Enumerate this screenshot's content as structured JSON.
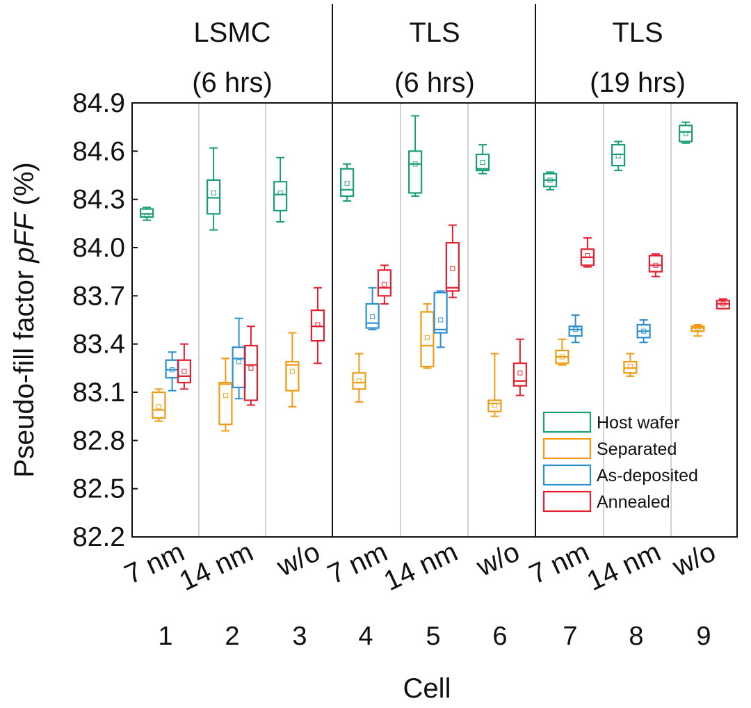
{
  "chart_data": {
    "type": "box",
    "ylabel_prefix": "Pseudo-fill factor ",
    "ylabel_italic": "pFF",
    "ylabel_suffix": " (%)",
    "xlabel": "Cell",
    "ylim": [
      82.2,
      84.9
    ],
    "yticks": [
      "82.2",
      "82.5",
      "82.8",
      "83.1",
      "83.4",
      "83.7",
      "84.0",
      "84.3",
      "84.6",
      "84.9"
    ],
    "groups": [
      {
        "line1": "LSMC",
        "line2": "(6 hrs)",
        "cells": [
          "1",
          "2",
          "3"
        ]
      },
      {
        "line1": "TLS",
        "line2": "(6 hrs)",
        "cells": [
          "4",
          "5",
          "6"
        ]
      },
      {
        "line1": "TLS",
        "line2": "(19 hrs)",
        "cells": [
          "7",
          "8",
          "9"
        ]
      }
    ],
    "cell_labels": [
      "7 nm",
      "14 nm",
      "w/o",
      "7 nm",
      "14 nm",
      "w/o",
      "7 nm",
      "14 nm",
      "w/o"
    ],
    "series": [
      {
        "name": "Host wafer",
        "color": "#1a9e77",
        "boxes": [
          {
            "cell": 1,
            "min": 84.17,
            "q1": 84.19,
            "median": 84.21,
            "mean": 84.2,
            "q3": 84.24,
            "max": 84.25
          },
          {
            "cell": 2,
            "min": 84.11,
            "q1": 84.21,
            "median": 84.31,
            "mean": 84.34,
            "q3": 84.42,
            "max": 84.62
          },
          {
            "cell": 3,
            "min": 84.16,
            "q1": 84.23,
            "median": 84.33,
            "mean": 84.34,
            "q3": 84.41,
            "max": 84.56
          },
          {
            "cell": 4,
            "min": 84.29,
            "q1": 84.32,
            "median": 84.36,
            "mean": 84.4,
            "q3": 84.49,
            "max": 84.52
          },
          {
            "cell": 5,
            "min": 84.32,
            "q1": 84.34,
            "median": 84.52,
            "mean": 84.52,
            "q3": 84.6,
            "max": 84.82
          },
          {
            "cell": 6,
            "min": 84.46,
            "q1": 84.48,
            "median": 84.49,
            "mean": 84.53,
            "q3": 84.58,
            "max": 84.64
          },
          {
            "cell": 7,
            "min": 84.36,
            "q1": 84.38,
            "median": 84.42,
            "mean": 84.42,
            "q3": 84.46,
            "max": 84.47
          },
          {
            "cell": 8,
            "min": 84.48,
            "q1": 84.51,
            "median": 84.58,
            "mean": 84.57,
            "q3": 84.64,
            "max": 84.66
          },
          {
            "cell": 9,
            "min": 84.65,
            "q1": 84.66,
            "median": 84.72,
            "mean": 84.71,
            "q3": 84.76,
            "max": 84.78
          }
        ]
      },
      {
        "name": "Separated",
        "color": "#f09b13",
        "boxes": [
          {
            "cell": 1,
            "min": 82.92,
            "q1": 82.94,
            "median": 82.99,
            "mean": 83.01,
            "q3": 83.1,
            "max": 83.12
          },
          {
            "cell": 2,
            "min": 82.86,
            "q1": 82.9,
            "median": 83.15,
            "mean": 83.08,
            "q3": 83.16,
            "max": 83.31
          },
          {
            "cell": 3,
            "min": 83.01,
            "q1": 83.11,
            "median": 83.27,
            "mean": 83.23,
            "q3": 83.29,
            "max": 83.47
          },
          {
            "cell": 4,
            "min": 83.04,
            "q1": 83.12,
            "median": 83.16,
            "mean": 83.17,
            "q3": 83.22,
            "max": 83.34
          },
          {
            "cell": 5,
            "min": 83.25,
            "q1": 83.26,
            "median": 83.39,
            "mean": 83.44,
            "q3": 83.6,
            "max": 83.65
          },
          {
            "cell": 6,
            "min": 82.95,
            "q1": 82.98,
            "median": 83.03,
            "mean": 83.02,
            "q3": 83.05,
            "max": 83.34
          },
          {
            "cell": 7,
            "min": 83.27,
            "q1": 83.28,
            "median": 83.32,
            "mean": 83.32,
            "q3": 83.36,
            "max": 83.43
          },
          {
            "cell": 8,
            "min": 83.2,
            "q1": 83.22,
            "median": 83.25,
            "mean": 83.26,
            "q3": 83.29,
            "max": 83.34
          },
          {
            "cell": 9,
            "min": 83.45,
            "q1": 83.48,
            "median": 83.5,
            "mean": 83.5,
            "q3": 83.51,
            "max": 83.52
          }
        ]
      },
      {
        "name": "As-deposited",
        "color": "#2b8fd0",
        "boxes": [
          {
            "cell": 1,
            "min": 83.11,
            "q1": 83.19,
            "median": 83.24,
            "mean": 83.24,
            "q3": 83.3,
            "max": 83.35
          },
          {
            "cell": 2,
            "min": 83.06,
            "q1": 83.13,
            "median": 83.31,
            "mean": 83.29,
            "q3": 83.38,
            "max": 83.56
          },
          {
            "cell": 4,
            "min": 83.49,
            "q1": 83.5,
            "median": 83.53,
            "mean": 83.57,
            "q3": 83.65,
            "max": 83.75
          },
          {
            "cell": 5,
            "min": 83.38,
            "q1": 83.47,
            "median": 83.49,
            "mean": 83.55,
            "q3": 83.72,
            "max": 83.73
          },
          {
            "cell": 7,
            "min": 83.41,
            "q1": 83.45,
            "median": 83.49,
            "mean": 83.49,
            "q3": 83.51,
            "max": 83.58
          },
          {
            "cell": 8,
            "min": 83.41,
            "q1": 83.44,
            "median": 83.48,
            "mean": 83.48,
            "q3": 83.52,
            "max": 83.55
          }
        ]
      },
      {
        "name": "Annealed",
        "color": "#e51f2f",
        "boxes": [
          {
            "cell": 1,
            "min": 83.12,
            "q1": 83.16,
            "median": 83.2,
            "mean": 83.23,
            "q3": 83.3,
            "max": 83.4
          },
          {
            "cell": 2,
            "min": 83.02,
            "q1": 83.05,
            "median": 83.27,
            "mean": 83.25,
            "q3": 83.39,
            "max": 83.51
          },
          {
            "cell": 3,
            "min": 83.28,
            "q1": 83.42,
            "median": 83.51,
            "mean": 83.52,
            "q3": 83.61,
            "max": 83.75
          },
          {
            "cell": 4,
            "min": 83.65,
            "q1": 83.7,
            "median": 83.75,
            "mean": 83.77,
            "q3": 83.86,
            "max": 83.89
          },
          {
            "cell": 5,
            "min": 83.69,
            "q1": 83.73,
            "median": 83.75,
            "mean": 83.87,
            "q3": 84.03,
            "max": 84.14
          },
          {
            "cell": 6,
            "min": 83.08,
            "q1": 83.14,
            "median": 83.17,
            "mean": 83.22,
            "q3": 83.28,
            "max": 83.43
          },
          {
            "cell": 7,
            "min": 83.88,
            "q1": 83.89,
            "median": 83.94,
            "mean": 83.95,
            "q3": 83.99,
            "max": 84.06
          },
          {
            "cell": 8,
            "min": 83.82,
            "q1": 83.85,
            "median": 83.89,
            "mean": 83.89,
            "q3": 83.95,
            "max": 83.96
          },
          {
            "cell": 9,
            "min": 83.62,
            "q1": 83.62,
            "median": 83.65,
            "mean": 83.65,
            "q3": 83.67,
            "max": 83.68
          }
        ]
      }
    ],
    "legend": [
      "Host wafer",
      "Separated",
      "As-deposited",
      "Annealed"
    ]
  }
}
